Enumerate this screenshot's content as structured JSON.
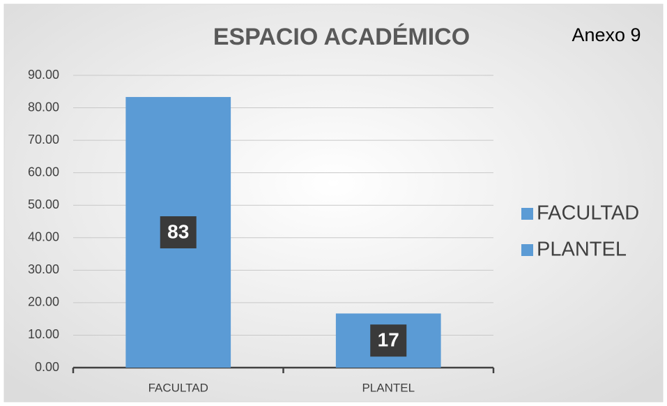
{
  "chart_data": {
    "type": "bar",
    "title": "ESPACIO ACADÉMICO",
    "annotation": "Anexo 9",
    "categories": [
      "FACULTAD",
      "PLANTEL"
    ],
    "values": [
      83.33,
      16.67
    ],
    "value_labels": [
      "83",
      "17"
    ],
    "color": "#5b9bd5",
    "ylim": [
      0,
      90
    ],
    "yticks": [
      {
        "value": 0,
        "label": "0.00"
      },
      {
        "value": 10,
        "label": "10.00"
      },
      {
        "value": 20,
        "label": "20.00"
      },
      {
        "value": 30,
        "label": "30.00"
      },
      {
        "value": 40,
        "label": "40.00"
      },
      {
        "value": 50,
        "label": "50.00"
      },
      {
        "value": 60,
        "label": "60.00"
      },
      {
        "value": 70,
        "label": "70.00"
      },
      {
        "value": 80,
        "label": "80.00"
      },
      {
        "value": 90,
        "label": "90.00"
      }
    ],
    "grid": true,
    "legend": "right"
  }
}
